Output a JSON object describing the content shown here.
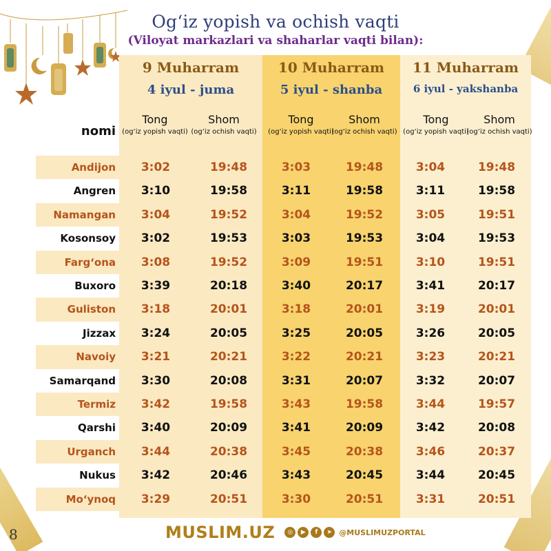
{
  "title": "Og‘iz yopish va ochish vaqti",
  "subtitle": "(Viloyat markazlari va shaharlar vaqti bilan):",
  "name_column_header": "nomi",
  "days": [
    {
      "hijri": "9 Muharram",
      "date": "4 iyul - juma"
    },
    {
      "hijri": "10 Muharram",
      "date": "5 iyul - shanba"
    },
    {
      "hijri": "11 Muharram",
      "date": "6 iyul - yakshanba"
    }
  ],
  "subheaders": {
    "tong": "Tong",
    "tong_note": "(og‘iz yopish vaqti)",
    "shom": "Shom",
    "shom_note": "(og‘iz ochish vaqti)"
  },
  "rows": [
    {
      "city": "Andijon",
      "times": [
        "3:02",
        "19:48",
        "3:03",
        "19:48",
        "3:04",
        "19:48"
      ]
    },
    {
      "city": "Angren",
      "times": [
        "3:10",
        "19:58",
        "3:11",
        "19:58",
        "3:11",
        "19:58"
      ]
    },
    {
      "city": "Namangan",
      "times": [
        "3:04",
        "19:52",
        "3:04",
        "19:52",
        "3:05",
        "19:51"
      ]
    },
    {
      "city": "Kosonsoy",
      "times": [
        "3:02",
        "19:53",
        "3:03",
        "19:53",
        "3:04",
        "19:53"
      ]
    },
    {
      "city": "Farg‘ona",
      "times": [
        "3:08",
        "19:52",
        "3:09",
        "19:51",
        "3:10",
        "19:51"
      ]
    },
    {
      "city": "Buxoro",
      "times": [
        "3:39",
        "20:18",
        "3:40",
        "20:17",
        "3:41",
        "20:17"
      ]
    },
    {
      "city": "Guliston",
      "times": [
        "3:18",
        "20:01",
        "3:18",
        "20:01",
        "3:19",
        "20:01"
      ]
    },
    {
      "city": "Jizzax",
      "times": [
        "3:24",
        "20:05",
        "3:25",
        "20:05",
        "3:26",
        "20:05"
      ]
    },
    {
      "city": "Navoiy",
      "times": [
        "3:21",
        "20:21",
        "3:22",
        "20:21",
        "3:23",
        "20:21"
      ]
    },
    {
      "city": "Samarqand",
      "times": [
        "3:30",
        "20:08",
        "3:31",
        "20:07",
        "3:32",
        "20:07"
      ]
    },
    {
      "city": "Termiz",
      "times": [
        "3:42",
        "19:58",
        "3:43",
        "19:58",
        "3:44",
        "19:57"
      ]
    },
    {
      "city": "Qarshi",
      "times": [
        "3:40",
        "20:09",
        "3:41",
        "20:09",
        "3:42",
        "20:08"
      ]
    },
    {
      "city": "Urganch",
      "times": [
        "3:44",
        "20:38",
        "3:45",
        "20:38",
        "3:46",
        "20:37"
      ]
    },
    {
      "city": "Nukus",
      "times": [
        "3:42",
        "20:46",
        "3:43",
        "20:45",
        "3:44",
        "20:45"
      ]
    },
    {
      "city": "Mo‘ynoq",
      "times": [
        "3:29",
        "20:51",
        "3:30",
        "20:51",
        "3:31",
        "20:51"
      ]
    }
  ],
  "footer": {
    "brand": "MUSLIM.UZ",
    "handle": "@MUSLIMUZPORTAL",
    "social_icons": [
      "instagram-icon",
      "youtube-icon",
      "facebook-icon",
      "telegram-icon"
    ]
  },
  "page_number": "8",
  "colors": {
    "accent_orange": "#b5541b",
    "title_blue": "#2f3e7a",
    "subtitle_purple": "#6d2a8a",
    "highlight_column": "#f8d36e",
    "gold": "#b07f1a"
  }
}
